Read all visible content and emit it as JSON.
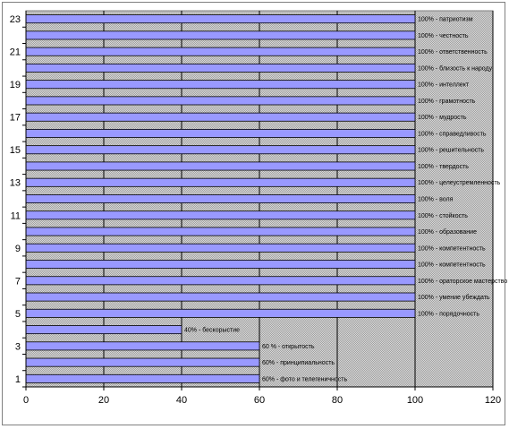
{
  "chart_data": {
    "type": "bar",
    "orientation": "horizontal",
    "title": "",
    "xlabel": "",
    "ylabel": "",
    "xlim": [
      0,
      120
    ],
    "x_ticks": [
      "0",
      "20",
      "40",
      "60",
      "80",
      "100",
      "120"
    ],
    "y_tick_labels": [
      "1",
      "3",
      "5",
      "7",
      "9",
      "11",
      "13",
      "15",
      "17",
      "19",
      "21",
      "23"
    ],
    "grid": true,
    "legend": "none",
    "colors": {
      "bar": "#9999ff",
      "bar_edge": "#000000",
      "plot_bg": "#c0c0c0",
      "gridline": "#000000"
    },
    "categories": [
      "1",
      "2",
      "3",
      "4",
      "5",
      "6",
      "7",
      "8",
      "9",
      "10",
      "11",
      "12",
      "13",
      "14",
      "15",
      "16",
      "17",
      "18",
      "19",
      "20",
      "21",
      "22",
      "23"
    ],
    "values": [
      60,
      60,
      60,
      40,
      100,
      100,
      100,
      100,
      100,
      100,
      100,
      100,
      100,
      100,
      100,
      100,
      100,
      100,
      100,
      100,
      100,
      100,
      100
    ],
    "data_labels": [
      "60% - фото и телегеничность",
      "60% - принципиальность",
      "60 % - открытость",
      "40% - бескорыстие",
      "100% - порядочность",
      "100% - умение убеждать",
      "100% - ораторское мастерство",
      "100% - компетентность",
      "100% - компетентность",
      "100% - образование",
      "100% - стойкость",
      "100% - воля",
      "100% - целеустремленность",
      "100% - твердость",
      "100% - решительность",
      "100% - справедливость",
      "100% - мудрость",
      "100% - грамотность",
      "100% - интеллект",
      "100% - близость к народу",
      "100% - ответственность",
      "100% - честность",
      "100% - патриотизм"
    ]
  }
}
